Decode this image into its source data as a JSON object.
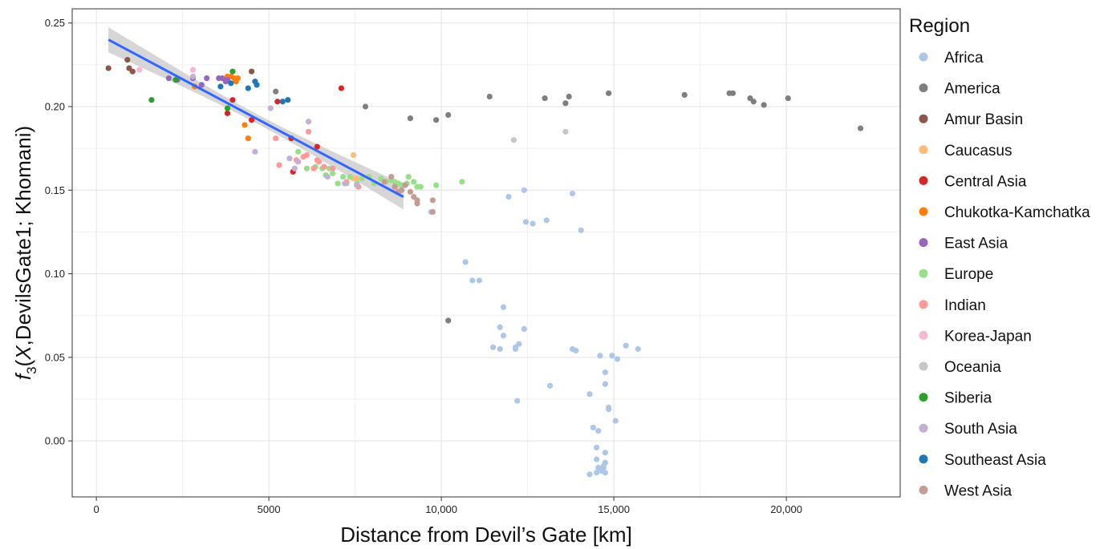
{
  "chart_data": {
    "type": "scatter",
    "xlabel": "Distance from Devil’s Gate [km]",
    "ylabel": "f3(X,DevilsGate1; Khomani)",
    "xlim": [
      -700,
      23300
    ],
    "ylim": [
      -0.0335,
      0.2585
    ],
    "x_ticks": [
      0,
      5000,
      10000,
      15000,
      20000
    ],
    "x_tick_labels": [
      "0",
      "5000",
      "10,000",
      "15,000",
      "20,000"
    ],
    "y_ticks": [
      0.0,
      0.05,
      0.1,
      0.15,
      0.2,
      0.25
    ],
    "y_tick_labels": [
      "0.00",
      "0.05",
      "0.10",
      "0.15",
      "0.20",
      "0.25"
    ],
    "grid": true,
    "legend": {
      "title": "Region",
      "position": "right"
    },
    "fit_line": {
      "type": "linear",
      "color": "#3366FF",
      "band_color": "#c8c8c8",
      "x": [
        350,
        8900
      ],
      "y": [
        0.24,
        0.146
      ],
      "band_half_width_ends": 0.0075,
      "band_half_width_mid": 0.0028
    },
    "series": [
      {
        "name": "Africa",
        "color": "#AEC7E8",
        "points": [
          [
            9700,
            0.137
          ],
          [
            10700,
            0.107
          ],
          [
            10900,
            0.096
          ],
          [
            11100,
            0.096
          ],
          [
            11500,
            0.056
          ],
          [
            11700,
            0.068
          ],
          [
            11700,
            0.055
          ],
          [
            11800,
            0.08
          ],
          [
            11800,
            0.063
          ],
          [
            11950,
            0.146
          ],
          [
            12150,
            0.056
          ],
          [
            12150,
            0.055
          ],
          [
            12250,
            0.058
          ],
          [
            12200,
            0.024
          ],
          [
            12400,
            0.15
          ],
          [
            12400,
            0.067
          ],
          [
            12450,
            0.131
          ],
          [
            12650,
            0.13
          ],
          [
            13050,
            0.132
          ],
          [
            13150,
            0.033
          ],
          [
            13800,
            0.148
          ],
          [
            13800,
            0.055
          ],
          [
            13900,
            0.054
          ],
          [
            14050,
            0.126
          ],
          [
            14300,
            0.028
          ],
          [
            14400,
            0.008
          ],
          [
            14550,
            0.006
          ],
          [
            14500,
            -0.004
          ],
          [
            14500,
            -0.011
          ],
          [
            14550,
            -0.016
          ],
          [
            14500,
            -0.019
          ],
          [
            14600,
            0.051
          ],
          [
            14700,
            -0.015
          ],
          [
            14700,
            -0.016
          ],
          [
            14750,
            -0.007
          ],
          [
            14750,
            -0.013
          ],
          [
            14750,
            -0.019
          ],
          [
            14750,
            0.041
          ],
          [
            14750,
            0.034
          ],
          [
            14850,
            0.02
          ],
          [
            14850,
            0.019
          ],
          [
            14950,
            0.051
          ],
          [
            15050,
            0.012
          ],
          [
            15100,
            0.049
          ],
          [
            15350,
            0.057
          ],
          [
            15700,
            0.055
          ],
          [
            14300,
            -0.02
          ],
          [
            14650,
            -0.018
          ]
        ]
      },
      {
        "name": "America",
        "color": "#7F7F7F",
        "points": [
          [
            5200,
            0.209
          ],
          [
            7800,
            0.2
          ],
          [
            9100,
            0.193
          ],
          [
            9850,
            0.192
          ],
          [
            10200,
            0.195
          ],
          [
            10200,
            0.072
          ],
          [
            11400,
            0.206
          ],
          [
            13000,
            0.205
          ],
          [
            13600,
            0.202
          ],
          [
            13700,
            0.206
          ],
          [
            14850,
            0.208
          ],
          [
            17050,
            0.207
          ],
          [
            18350,
            0.208
          ],
          [
            18450,
            0.208
          ],
          [
            18950,
            0.205
          ],
          [
            19050,
            0.203
          ],
          [
            19350,
            0.201
          ],
          [
            20050,
            0.205
          ],
          [
            22150,
            0.187
          ]
        ]
      },
      {
        "name": "Amur Basin",
        "color": "#8C564B",
        "points": [
          [
            350,
            0.223
          ],
          [
            900,
            0.228
          ],
          [
            950,
            0.223
          ],
          [
            1050,
            0.221
          ],
          [
            4500,
            0.221
          ]
        ]
      },
      {
        "name": "Caucasus",
        "color": "#FFBB78",
        "points": [
          [
            7450,
            0.171
          ],
          [
            7450,
            0.157
          ],
          [
            7550,
            0.157
          ],
          [
            8550,
            0.156
          ]
        ]
      },
      {
        "name": "Central Asia",
        "color": "#D62728",
        "points": [
          [
            3800,
            0.196
          ],
          [
            3950,
            0.204
          ],
          [
            4500,
            0.192
          ],
          [
            5250,
            0.203
          ],
          [
            5650,
            0.181
          ],
          [
            5700,
            0.161
          ],
          [
            6400,
            0.176
          ],
          [
            7100,
            0.211
          ]
        ]
      },
      {
        "name": "Chukotka-Kamchatka",
        "color": "#FF7F0E",
        "points": [
          [
            2850,
            0.212
          ],
          [
            3800,
            0.218
          ],
          [
            3900,
            0.218
          ],
          [
            4000,
            0.217
          ],
          [
            4050,
            0.215
          ],
          [
            4100,
            0.217
          ],
          [
            4300,
            0.189
          ],
          [
            4400,
            0.181
          ]
        ]
      },
      {
        "name": "East Asia",
        "color": "#9467BD",
        "points": [
          [
            2100,
            0.217
          ],
          [
            2350,
            0.216
          ],
          [
            2800,
            0.217
          ],
          [
            3050,
            0.213
          ],
          [
            3200,
            0.217
          ],
          [
            3550,
            0.217
          ],
          [
            3650,
            0.217
          ],
          [
            3750,
            0.215
          ],
          [
            3800,
            0.216
          ]
        ]
      },
      {
        "name": "Europe",
        "color": "#98DF8A",
        "points": [
          [
            5850,
            0.173
          ],
          [
            6100,
            0.163
          ],
          [
            6350,
            0.164
          ],
          [
            6550,
            0.163
          ],
          [
            6650,
            0.159
          ],
          [
            6750,
            0.163
          ],
          [
            6850,
            0.16
          ],
          [
            7000,
            0.154
          ],
          [
            7150,
            0.158
          ],
          [
            7250,
            0.154
          ],
          [
            7350,
            0.158
          ],
          [
            7550,
            0.154
          ],
          [
            7700,
            0.157
          ],
          [
            7900,
            0.158
          ],
          [
            8050,
            0.154
          ],
          [
            8250,
            0.157
          ],
          [
            8400,
            0.155
          ],
          [
            8550,
            0.156
          ],
          [
            8650,
            0.155
          ],
          [
            8750,
            0.154
          ],
          [
            8850,
            0.153
          ],
          [
            9000,
            0.154
          ],
          [
            9050,
            0.158
          ],
          [
            9200,
            0.155
          ],
          [
            9300,
            0.152
          ],
          [
            9400,
            0.152
          ],
          [
            9850,
            0.153
          ],
          [
            10600,
            0.155
          ]
        ]
      },
      {
        "name": "Indian",
        "color": "#FF9896",
        "points": [
          [
            5200,
            0.181
          ],
          [
            5300,
            0.165
          ],
          [
            5800,
            0.168
          ],
          [
            6000,
            0.17
          ],
          [
            6100,
            0.171
          ],
          [
            6150,
            0.185
          ],
          [
            6300,
            0.163
          ],
          [
            6400,
            0.168
          ],
          [
            6450,
            0.167
          ],
          [
            6600,
            0.164
          ],
          [
            6850,
            0.163
          ],
          [
            7250,
            0.155
          ],
          [
            7600,
            0.152
          ]
        ]
      },
      {
        "name": "Korea-Japan",
        "color": "#F7B6D2",
        "points": [
          [
            1250,
            0.222
          ],
          [
            2800,
            0.222
          ]
        ]
      },
      {
        "name": "Oceania",
        "color": "#C7C7C7",
        "points": [
          [
            12100,
            0.18
          ],
          [
            13600,
            0.185
          ]
        ]
      },
      {
        "name": "Siberia",
        "color": "#2CA02C",
        "points": [
          [
            1600,
            0.204
          ],
          [
            2300,
            0.216
          ],
          [
            3800,
            0.199
          ],
          [
            3950,
            0.221
          ]
        ]
      },
      {
        "name": "South Asia",
        "color": "#C5B0D5",
        "points": [
          [
            2800,
            0.218
          ],
          [
            4600,
            0.173
          ],
          [
            5050,
            0.199
          ],
          [
            5600,
            0.169
          ],
          [
            5750,
            0.163
          ],
          [
            5850,
            0.167
          ],
          [
            6150,
            0.191
          ],
          [
            6700,
            0.158
          ],
          [
            7200,
            0.154
          ],
          [
            7550,
            0.153
          ]
        ]
      },
      {
        "name": "Southeast Asia",
        "color": "#1F77B4",
        "points": [
          [
            3600,
            0.212
          ],
          [
            3900,
            0.214
          ],
          [
            4400,
            0.211
          ],
          [
            4650,
            0.213
          ],
          [
            5400,
            0.203
          ],
          [
            5550,
            0.204
          ],
          [
            4600,
            0.215
          ]
        ]
      },
      {
        "name": "West Asia",
        "color": "#C49C94",
        "points": [
          [
            8350,
            0.155
          ],
          [
            8550,
            0.158
          ],
          [
            8650,
            0.152
          ],
          [
            8750,
            0.149
          ],
          [
            8850,
            0.15
          ],
          [
            8950,
            0.153
          ],
          [
            9100,
            0.149
          ],
          [
            9200,
            0.146
          ],
          [
            9300,
            0.142
          ],
          [
            9300,
            0.144
          ],
          [
            9750,
            0.144
          ],
          [
            9750,
            0.137
          ]
        ]
      }
    ]
  }
}
